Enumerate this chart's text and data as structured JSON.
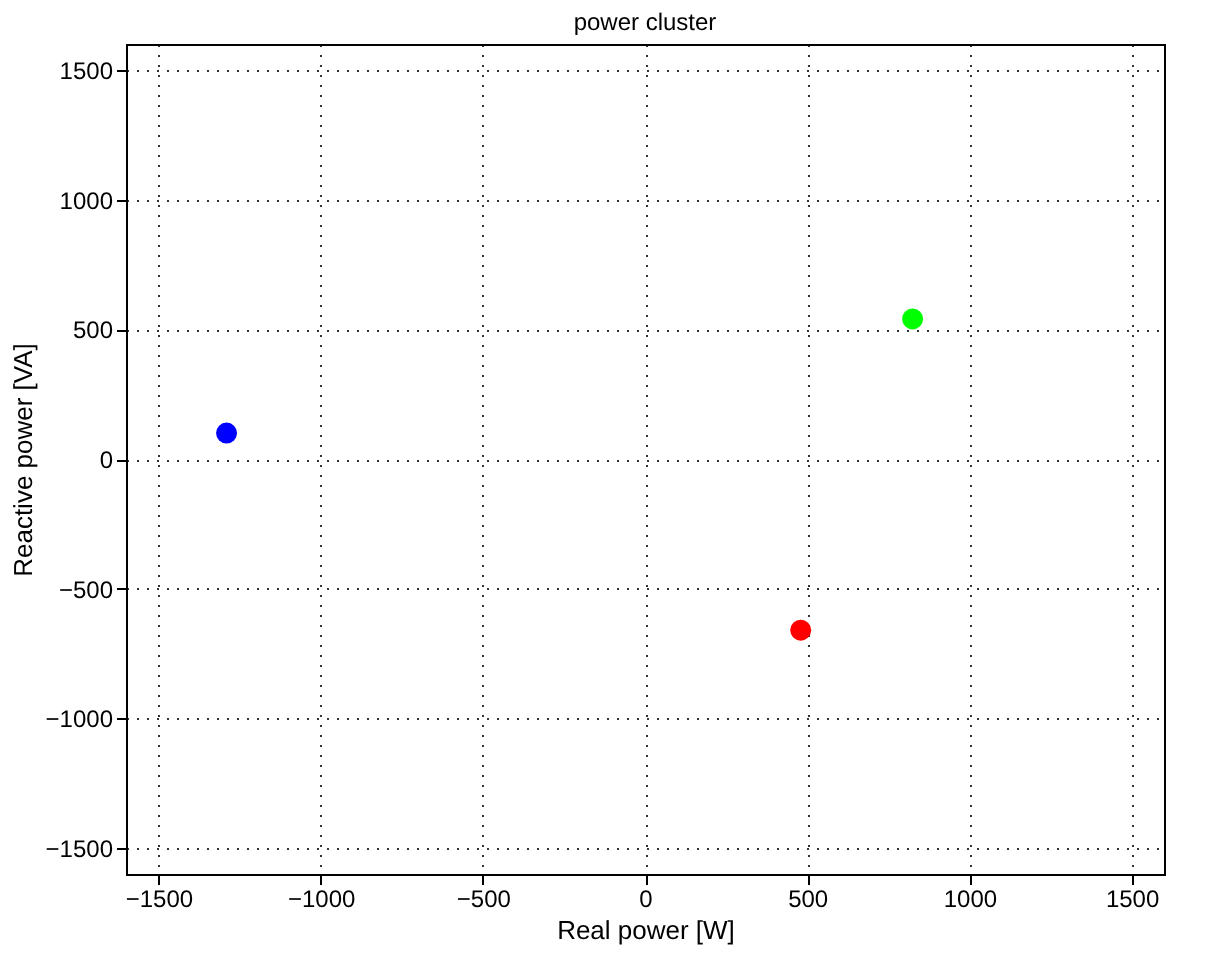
{
  "chart_data": {
    "type": "scatter",
    "title": "power cluster",
    "xlabel": "Real power [W]",
    "ylabel": "Reactive power [VA]",
    "series": [
      {
        "color": "#0000ff",
        "x": [
          -1290
        ],
        "values": [
          100
        ]
      },
      {
        "color": "#00ff00",
        "x": [
          825
        ],
        "values": [
          540
        ]
      },
      {
        "color": "#ff0000",
        "x": [
          480
        ],
        "values": [
          -660
        ]
      }
    ],
    "xlim": [
      -1600,
      1600
    ],
    "ylim": [
      -1600,
      1600
    ],
    "xticks": [
      {
        "value": -1500,
        "label": "−1500"
      },
      {
        "value": -1000,
        "label": "−1000"
      },
      {
        "value": -500,
        "label": "−500"
      },
      0,
      500,
      1000,
      1500
    ],
    "yticks": [
      {
        "value": -1500,
        "label": "−1500"
      },
      {
        "value": -1000,
        "label": "−1000"
      },
      {
        "value": -500,
        "label": "−500"
      },
      0,
      500,
      1000,
      1500
    ],
    "grid": true,
    "marker": "circle",
    "legend": false
  }
}
